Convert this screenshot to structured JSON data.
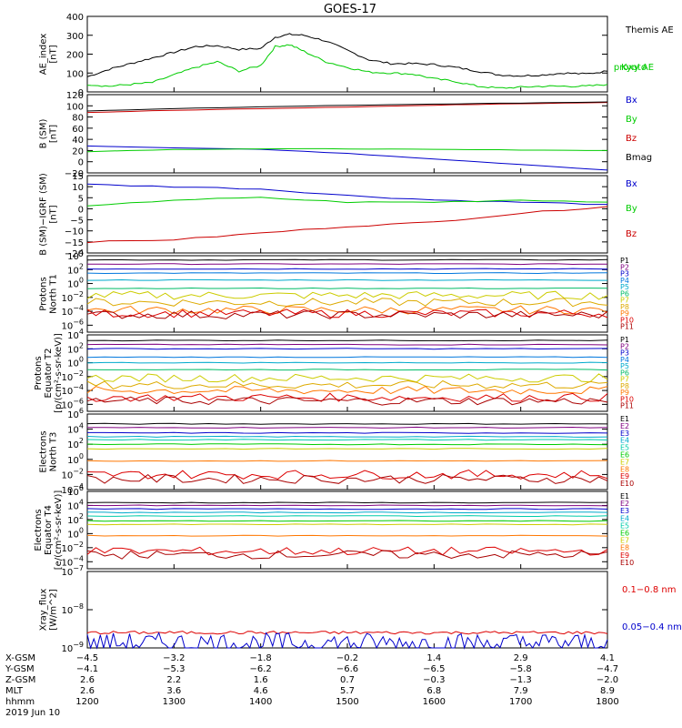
{
  "title": "GOES-17",
  "chart_data": [
    {
      "type": "line",
      "panel": "AE index",
      "ylabel": [
        "AE_index",
        "[nT]"
      ],
      "ylim": [
        0,
        400
      ],
      "yticks": [
        0,
        100,
        200,
        300,
        400
      ],
      "ytick_labels": [
        "0",
        "100",
        "200",
        "300",
        "400"
      ],
      "series": [
        {
          "name": "Themis AE",
          "color": "#000000",
          "x": [
            1200,
            1215,
            1230,
            1245,
            1300,
            1315,
            1330,
            1345,
            1400,
            1410,
            1420,
            1430,
            1445,
            1500,
            1515,
            1530,
            1545,
            1600,
            1615,
            1630,
            1645,
            1700,
            1715,
            1730,
            1745,
            1800
          ],
          "values": [
            80,
            120,
            150,
            180,
            210,
            240,
            245,
            225,
            230,
            290,
            305,
            300,
            270,
            220,
            170,
            150,
            150,
            145,
            130,
            110,
            90,
            85,
            90,
            100,
            95,
            110
          ]
        },
        {
          "name": "Kyoto proxy AE",
          "color": "#00cc00",
          "x": [
            1200,
            1215,
            1230,
            1245,
            1300,
            1315,
            1330,
            1345,
            1400,
            1410,
            1420,
            1430,
            1445,
            1500,
            1515,
            1530,
            1545,
            1600,
            1615,
            1630,
            1645,
            1700,
            1715,
            1730,
            1745,
            1800
          ],
          "values": [
            40,
            30,
            40,
            50,
            90,
            130,
            160,
            110,
            140,
            240,
            250,
            215,
            160,
            130,
            105,
            100,
            95,
            70,
            55,
            30,
            20,
            25,
            30,
            30,
            30,
            40
          ]
        }
      ]
    },
    {
      "type": "line",
      "panel": "B (SM)",
      "ylabel": [
        "B (SM)",
        "[nT]"
      ],
      "ylim": [
        -20,
        120
      ],
      "yticks": [
        -20,
        0,
        20,
        40,
        60,
        80,
        100,
        120
      ],
      "ytick_labels": [
        "−20",
        "0",
        "20",
        "40",
        "60",
        "80",
        "100",
        "120"
      ],
      "series": [
        {
          "name": "Bx",
          "color": "#0000cc",
          "x": [
            1200,
            1300,
            1400,
            1500,
            1600,
            1700,
            1800
          ],
          "values": [
            28,
            25,
            22,
            15,
            5,
            -5,
            -15
          ]
        },
        {
          "name": "By",
          "color": "#00cc00",
          "x": [
            1200,
            1300,
            1400,
            1500,
            1600,
            1700,
            1800
          ],
          "values": [
            18,
            22,
            23,
            23,
            22,
            21,
            20
          ]
        },
        {
          "name": "Bz",
          "color": "#cc0000",
          "x": [
            1200,
            1300,
            1400,
            1500,
            1600,
            1700,
            1800
          ],
          "values": [
            88,
            92,
            95,
            98,
            101,
            104,
            106
          ]
        },
        {
          "name": "Bmag",
          "color": "#000000",
          "x": [
            1200,
            1300,
            1400,
            1500,
            1600,
            1700,
            1800
          ],
          "values": [
            91,
            95,
            98,
            101,
            103,
            105,
            107
          ]
        }
      ]
    },
    {
      "type": "line",
      "panel": "B (SM) - IGRF (SM)",
      "ylabel": [
        "B (SM)−IGRF (SM)",
        "[nT]"
      ],
      "ylim": [
        -20,
        15
      ],
      "yticks": [
        -20,
        -15,
        -10,
        -5,
        0,
        5,
        10,
        15
      ],
      "ytick_labels": [
        "−20",
        "−15",
        "−10",
        "−5",
        "0",
        "5",
        "10",
        "15"
      ],
      "series": [
        {
          "name": "Bx",
          "color": "#0000cc",
          "x": [
            1200,
            1300,
            1400,
            1500,
            1600,
            1700,
            1800
          ],
          "values": [
            11,
            10,
            9,
            6,
            4,
            3,
            2
          ]
        },
        {
          "name": "By",
          "color": "#00cc00",
          "x": [
            1200,
            1300,
            1400,
            1500,
            1600,
            1700,
            1800
          ],
          "values": [
            1,
            4,
            5,
            3,
            3,
            4,
            3
          ]
        },
        {
          "name": "Bz",
          "color": "#cc0000",
          "x": [
            1200,
            1300,
            1400,
            1500,
            1600,
            1700,
            1800
          ],
          "values": [
            -15,
            -14,
            -11,
            -8,
            -6,
            -2,
            1
          ]
        }
      ]
    },
    {
      "type": "line",
      "panel": "Protons North T1",
      "ylabel": [
        "Protons",
        "North T1"
      ],
      "log": true,
      "ylim_exp": [
        -7,
        4
      ],
      "ytick_exps": [
        -6,
        -4,
        -2,
        0,
        2,
        4
      ],
      "series_names": [
        "P1",
        "P2",
        "P3",
        "P4",
        "P5",
        "P6",
        "P7",
        "P8",
        "P9",
        "P10",
        "P11"
      ],
      "series_colors": [
        "#000000",
        "#800080",
        "#0000cc",
        "#0077dd",
        "#00aacc",
        "#00bb66",
        "#cccc00",
        "#ddaa00",
        "#ff7700",
        "#dd0000",
        "#aa0000"
      ],
      "levels_exp": [
        3.4,
        2.8,
        2.1,
        1.5,
        0.5,
        -0.7,
        -1.7,
        -2.7,
        -3.8,
        -4.3,
        -4.5
      ]
    },
    {
      "type": "line",
      "panel": "Protons Equator T2",
      "ylabel": [
        "Protons",
        "Equator T2",
        "[p/(cm²-s-sr-keV)]"
      ],
      "log": true,
      "ylim_exp": [
        -7,
        4
      ],
      "ytick_exps": [
        -6,
        -4,
        -2,
        0,
        2,
        4
      ],
      "series_names": [
        "P1",
        "P2",
        "P3",
        "P4",
        "P5",
        "P6",
        "P7",
        "P8",
        "P9",
        "P10",
        "P11"
      ],
      "series_colors": [
        "#000000",
        "#800080",
        "#0000cc",
        "#0077dd",
        "#00aacc",
        "#00bb66",
        "#cccc00",
        "#ddaa00",
        "#ff7700",
        "#dd0000",
        "#aa0000"
      ],
      "levels_exp": [
        3.2,
        2.6,
        2.0,
        0.8,
        0.0,
        -1.0,
        -2.2,
        -3.2,
        -4.0,
        -5.0,
        -5.5
      ]
    },
    {
      "type": "line",
      "panel": "Electrons North T3",
      "ylabel": [
        "Electrons",
        "North T3"
      ],
      "log": true,
      "ylim_exp": [
        -4,
        6
      ],
      "ytick_exps": [
        -4,
        -2,
        0,
        2,
        4,
        6
      ],
      "series_names": [
        "E1",
        "E2",
        "E3",
        "E4",
        "E5",
        "E6",
        "E7",
        "E8",
        "E9",
        "E10"
      ],
      "series_colors": [
        "#000000",
        "#800080",
        "#0000cc",
        "#00aacc",
        "#00ccaa",
        "#00cc00",
        "#cccc00",
        "#ff7700",
        "#dd0000",
        "#aa0000"
      ],
      "levels_exp": [
        4.7,
        4.2,
        3.5,
        3.0,
        2.6,
        2.0,
        1.4,
        -0.2,
        -2.0,
        -2.6
      ]
    },
    {
      "type": "line",
      "panel": "Electrons Equator T4",
      "ylabel": [
        "Electrons",
        "Equator T4",
        "[e/(cm²-s-sr-keV)]"
      ],
      "log": true,
      "ylim_exp": [
        -5,
        6
      ],
      "ytick_exps": [
        -4,
        -2,
        0,
        2,
        4,
        6
      ],
      "series_names": [
        "E1",
        "E2",
        "E3",
        "E4",
        "E5",
        "E6",
        "E7",
        "E8",
        "E9",
        "E10"
      ],
      "series_colors": [
        "#000000",
        "#800080",
        "#0000cc",
        "#00aacc",
        "#00ccaa",
        "#00cc00",
        "#cccc00",
        "#ff7700",
        "#dd0000",
        "#aa0000"
      ],
      "levels_exp": [
        4.4,
        4.0,
        3.5,
        3.0,
        2.5,
        1.8,
        1.3,
        -0.3,
        -2.5,
        -3.0
      ]
    },
    {
      "type": "line",
      "panel": "Xray flux",
      "ylabel": [
        "Xray_flux",
        "[W/m^2]"
      ],
      "log": true,
      "ylim_exp": [
        -9,
        -7
      ],
      "ytick_exps": [
        -9,
        -8,
        -7
      ],
      "series": [
        {
          "name": "0.1−0.8 nm",
          "color": "#dd0000",
          "level_exp": -8.6
        },
        {
          "name": "0.05−0.4 nm",
          "color": "#0000cc",
          "level_exp": -9.05
        }
      ]
    }
  ],
  "x_axis": {
    "range": [
      1200,
      1800
    ],
    "row_labels": [
      "X-GSM",
      "Y-GSM",
      "Z-GSM",
      "MLT",
      "hhmm"
    ],
    "rows": [
      [
        "−4.5",
        "−3.2",
        "−1.8",
        "−0.2",
        "1.4",
        "2.9",
        "4.1"
      ],
      [
        "−4.1",
        "−5.3",
        "−6.2",
        "−6.6",
        "−6.5",
        "−5.8",
        "−4.7"
      ],
      [
        "2.6",
        "2.2",
        "1.6",
        "0.7",
        "−0.3",
        "−1.3",
        "−2.0"
      ],
      [
        "2.6",
        "3.6",
        "4.6",
        "5.7",
        "6.8",
        "7.9",
        "8.9"
      ],
      [
        "1200",
        "1300",
        "1400",
        "1500",
        "1600",
        "1700",
        "1800"
      ]
    ],
    "date": "2019 Jun 10"
  }
}
